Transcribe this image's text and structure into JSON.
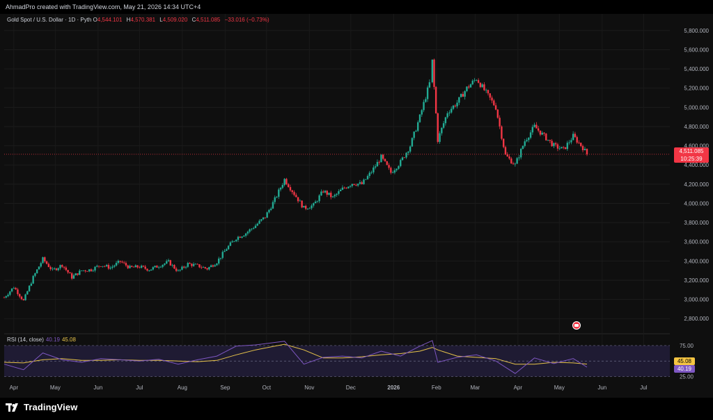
{
  "header": {
    "credit": "AhmadPro created with TradingView.com, May 21, 2026 14:34 UTC+4"
  },
  "legend": {
    "symbol": "Gold Spot / U.S. Dollar · 1D · Pyth",
    "open_label": "O",
    "open": "4,544.101",
    "high_label": "H",
    "high": "4,570.381",
    "low_label": "L",
    "low": "4,509.020",
    "close_label": "C",
    "close": "4,511.085",
    "change": "−33.016 (−0.73%)"
  },
  "price_badge": {
    "price": "4,511.085",
    "countdown": "10:25:39"
  },
  "rsi": {
    "label": "RSI (14, close)",
    "value": "40.19",
    "ma_value": "45.08",
    "badge_ma": "45.08",
    "badge_rsi": "40.19"
  },
  "footer": {
    "brand": "TradingView"
  },
  "colors": {
    "up": "#22ab94",
    "down": "#f23645",
    "rsi_line": "#7e57c2",
    "rsi_ma": "#e8c44a",
    "background": "#0f0f0f"
  },
  "icons": {
    "logo": "tradingview-logo-icon",
    "event": "us-flag-event-icon"
  },
  "chart_data": {
    "type": "candlestick",
    "title": "Gold Spot / U.S. Dollar · 1D · Pyth",
    "y_ticks": [
      "5,800.000",
      "5,600.000",
      "5,400.000",
      "5,200.000",
      "5,000.000",
      "4,800.000",
      "4,600.000",
      "4,400.000",
      "4,200.000",
      "4,000.000",
      "3,800.000",
      "3,600.000",
      "3,400.000",
      "3,200.000",
      "3,000.000",
      "2,800.000"
    ],
    "y_tick_values": [
      5800,
      5600,
      5400,
      5200,
      5000,
      4800,
      4600,
      4400,
      4200,
      4000,
      3800,
      3600,
      3400,
      3200,
      3000,
      2800
    ],
    "ylim": [
      2700,
      5900
    ],
    "x_ticks": [
      "Apr",
      "May",
      "Jun",
      "Jul",
      "Aug",
      "Sep",
      "Oct",
      "Nov",
      "Dec",
      "2026",
      "Feb",
      "Mar",
      "Apr",
      "May",
      "Jun",
      "Jul"
    ],
    "x_tick_dates": [
      "2025-04-01",
      "2025-05-01",
      "2025-06-01",
      "2025-07-01",
      "2025-08-01",
      "2025-09-01",
      "2025-10-01",
      "2025-11-01",
      "2025-12-01",
      "2026-01-01",
      "2026-02-01",
      "2026-03-01",
      "2026-04-01",
      "2026-05-01",
      "2026-06-01",
      "2026-07-01"
    ],
    "xlim": [
      "2025-03-25",
      "2026-07-20"
    ],
    "last_price": 4511.085,
    "series": [
      {
        "date": "2025-03-25",
        "close": 3020
      },
      {
        "date": "2025-04-01",
        "close": 3130
      },
      {
        "date": "2025-04-08",
        "close": 2985
      },
      {
        "date": "2025-04-15",
        "close": 3230
      },
      {
        "date": "2025-04-22",
        "close": 3420
      },
      {
        "date": "2025-04-29",
        "close": 3300
      },
      {
        "date": "2025-05-06",
        "close": 3360
      },
      {
        "date": "2025-05-13",
        "close": 3230
      },
      {
        "date": "2025-05-20",
        "close": 3300
      },
      {
        "date": "2025-05-27",
        "close": 3310
      },
      {
        "date": "2025-06-03",
        "close": 3360
      },
      {
        "date": "2025-06-10",
        "close": 3330
      },
      {
        "date": "2025-06-17",
        "close": 3395
      },
      {
        "date": "2025-06-24",
        "close": 3330
      },
      {
        "date": "2025-07-01",
        "close": 3340
      },
      {
        "date": "2025-07-08",
        "close": 3310
      },
      {
        "date": "2025-07-15",
        "close": 3350
      },
      {
        "date": "2025-07-22",
        "close": 3390
      },
      {
        "date": "2025-07-29",
        "close": 3290
      },
      {
        "date": "2025-08-05",
        "close": 3370
      },
      {
        "date": "2025-08-12",
        "close": 3350
      },
      {
        "date": "2025-08-19",
        "close": 3320
      },
      {
        "date": "2025-08-26",
        "close": 3390
      },
      {
        "date": "2025-09-02",
        "close": 3530
      },
      {
        "date": "2025-09-09",
        "close": 3640
      },
      {
        "date": "2025-09-16",
        "close": 3690
      },
      {
        "date": "2025-09-23",
        "close": 3770
      },
      {
        "date": "2025-09-30",
        "close": 3860
      },
      {
        "date": "2025-10-07",
        "close": 4040
      },
      {
        "date": "2025-10-14",
        "close": 4250
      },
      {
        "date": "2025-10-21",
        "close": 4100
      },
      {
        "date": "2025-10-28",
        "close": 3950
      },
      {
        "date": "2025-11-04",
        "close": 3980
      },
      {
        "date": "2025-11-11",
        "close": 4130
      },
      {
        "date": "2025-11-18",
        "close": 4060
      },
      {
        "date": "2025-11-25",
        "close": 4150
      },
      {
        "date": "2025-12-02",
        "close": 4210
      },
      {
        "date": "2025-12-09",
        "close": 4200
      },
      {
        "date": "2025-12-16",
        "close": 4330
      },
      {
        "date": "2025-12-23",
        "close": 4480
      },
      {
        "date": "2025-12-30",
        "close": 4320
      },
      {
        "date": "2026-01-06",
        "close": 4430
      },
      {
        "date": "2026-01-13",
        "close": 4600
      },
      {
        "date": "2026-01-20",
        "close": 4900
      },
      {
        "date": "2026-01-27",
        "close": 5250
      },
      {
        "date": "2026-01-29",
        "close": 5480
      },
      {
        "date": "2026-02-02",
        "close": 4660
      },
      {
        "date": "2026-02-09",
        "close": 4950
      },
      {
        "date": "2026-02-16",
        "close": 5050
      },
      {
        "date": "2026-02-23",
        "close": 5200
      },
      {
        "date": "2026-03-02",
        "close": 5300
      },
      {
        "date": "2026-03-09",
        "close": 5150
      },
      {
        "date": "2026-03-16",
        "close": 5000
      },
      {
        "date": "2026-03-23",
        "close": 4500
      },
      {
        "date": "2026-03-30",
        "close": 4400
      },
      {
        "date": "2026-04-06",
        "close": 4650
      },
      {
        "date": "2026-04-13",
        "close": 4800
      },
      {
        "date": "2026-04-20",
        "close": 4700
      },
      {
        "date": "2026-04-27",
        "close": 4600
      },
      {
        "date": "2026-05-04",
        "close": 4560
      },
      {
        "date": "2026-05-11",
        "close": 4700
      },
      {
        "date": "2026-05-18",
        "close": 4580
      },
      {
        "date": "2026-05-21",
        "close": 4511
      }
    ],
    "rsi": {
      "label": "RSI (14, close)",
      "y_ticks": [
        "75.00",
        "50.00",
        "25.00"
      ],
      "y_tick_values": [
        75,
        50,
        25
      ],
      "ylim": [
        20,
        85
      ],
      "values": [
        {
          "date": "2025-03-25",
          "rsi": 45,
          "ma": 48
        },
        {
          "date": "2025-04-08",
          "rsi": 36,
          "ma": 47
        },
        {
          "date": "2025-04-22",
          "rsi": 63,
          "ma": 52
        },
        {
          "date": "2025-05-06",
          "rsi": 52,
          "ma": 54
        },
        {
          "date": "2025-05-20",
          "rsi": 48,
          "ma": 51
        },
        {
          "date": "2025-06-03",
          "rsi": 54,
          "ma": 51
        },
        {
          "date": "2025-06-17",
          "rsi": 52,
          "ma": 52
        },
        {
          "date": "2025-07-01",
          "rsi": 50,
          "ma": 51
        },
        {
          "date": "2025-07-15",
          "rsi": 53,
          "ma": 51
        },
        {
          "date": "2025-07-29",
          "rsi": 45,
          "ma": 50
        },
        {
          "date": "2025-08-12",
          "rsi": 52,
          "ma": 49
        },
        {
          "date": "2025-08-26",
          "rsi": 58,
          "ma": 51
        },
        {
          "date": "2025-09-09",
          "rsi": 74,
          "ma": 60
        },
        {
          "date": "2025-09-23",
          "rsi": 76,
          "ma": 68
        },
        {
          "date": "2025-10-07",
          "rsi": 80,
          "ma": 74
        },
        {
          "date": "2025-10-14",
          "rsi": 82,
          "ma": 77
        },
        {
          "date": "2025-10-28",
          "rsi": 45,
          "ma": 68
        },
        {
          "date": "2025-11-11",
          "rsi": 56,
          "ma": 55
        },
        {
          "date": "2025-11-25",
          "rsi": 58,
          "ma": 55
        },
        {
          "date": "2025-12-09",
          "rsi": 55,
          "ma": 57
        },
        {
          "date": "2025-12-23",
          "rsi": 66,
          "ma": 60
        },
        {
          "date": "2026-01-06",
          "rsi": 58,
          "ma": 62
        },
        {
          "date": "2026-01-20",
          "rsi": 74,
          "ma": 66
        },
        {
          "date": "2026-01-29",
          "rsi": 83,
          "ma": 72
        },
        {
          "date": "2026-02-02",
          "rsi": 48,
          "ma": 68
        },
        {
          "date": "2026-02-16",
          "rsi": 56,
          "ma": 58
        },
        {
          "date": "2026-03-02",
          "rsi": 60,
          "ma": 56
        },
        {
          "date": "2026-03-16",
          "rsi": 50,
          "ma": 54
        },
        {
          "date": "2026-03-30",
          "rsi": 30,
          "ma": 45
        },
        {
          "date": "2026-04-13",
          "rsi": 55,
          "ma": 45
        },
        {
          "date": "2026-04-27",
          "rsi": 46,
          "ma": 48
        },
        {
          "date": "2026-05-11",
          "rsi": 54,
          "ma": 47
        },
        {
          "date": "2026-05-21",
          "rsi": 40.19,
          "ma": 45.08
        }
      ]
    }
  }
}
